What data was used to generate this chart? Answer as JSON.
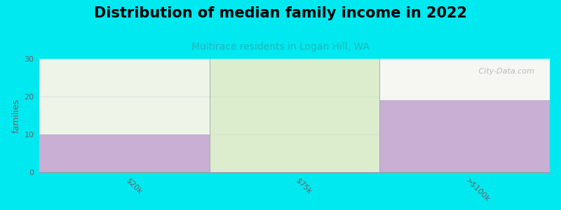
{
  "title": "Distribution of median family income in 2022",
  "subtitle": "Multirace residents in Logan Hill, WA",
  "categories": [
    "$20k",
    "$75k",
    ">$100k"
  ],
  "values": [
    10,
    30,
    19
  ],
  "bar_colors": [
    "#c8afd3",
    "#cce8b8",
    "#c8afd3"
  ],
  "background_color": "#00e8f0",
  "plot_bg_top": "#f5f5f2",
  "plot_bg_bottom": "#f5f5f2",
  "ylabel": "families",
  "ylim": [
    0,
    30
  ],
  "yticks": [
    0,
    10,
    20,
    30
  ],
  "title_fontsize": 15,
  "subtitle_fontsize": 10,
  "subtitle_color": "#20b8b8",
  "watermark": " City-Data.com",
  "bar_alpha": [
    1.0,
    0.55,
    1.0
  ],
  "tick_label_color": "#666666",
  "grid_color": "#dddddd"
}
